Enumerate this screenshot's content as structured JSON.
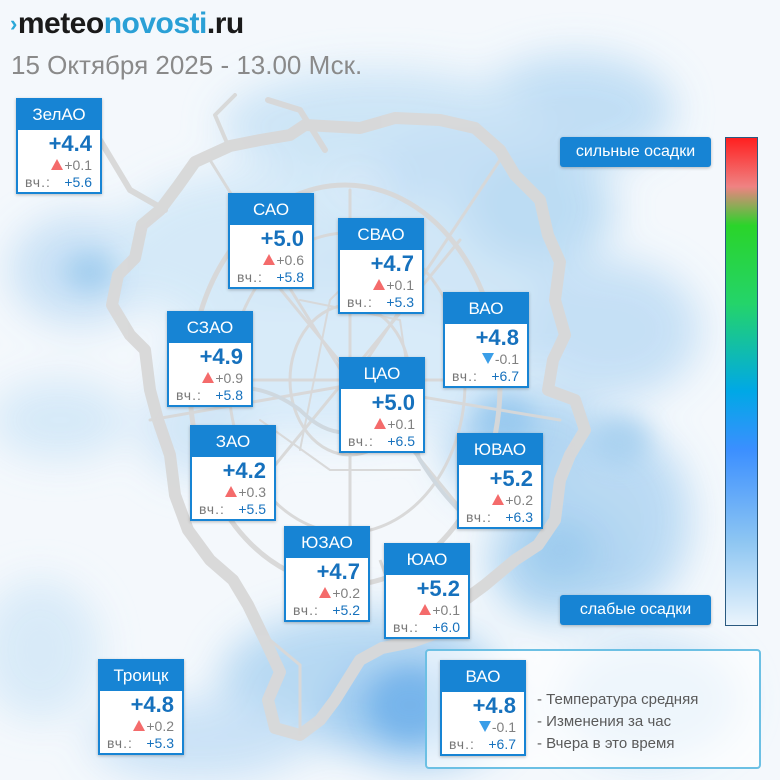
{
  "site": {
    "logo_mark": "›",
    "logo_a": "meteo",
    "logo_b": "novosti",
    "logo_c": ".ru"
  },
  "subtitle": "15 Октября 2025 - 13.00 Мск.",
  "yesterday_label": "вч.:",
  "colors": {
    "accent": "#1784d4",
    "increase_triangle": "#f46b6b",
    "decrease_triangle": "#3a9ee8",
    "temperature_text": "#1671bd"
  },
  "districts": [
    {
      "name": "ЗелАО",
      "temp": "+4.4",
      "trend": "up",
      "change": "+0.1",
      "yesterday": "+5.6"
    },
    {
      "name": "САО",
      "temp": "+5.0",
      "trend": "up",
      "change": "+0.6",
      "yesterday": "+5.8"
    },
    {
      "name": "СВАО",
      "temp": "+4.7",
      "trend": "up",
      "change": "+0.1",
      "yesterday": "+5.3"
    },
    {
      "name": "ВАО",
      "temp": "+4.8",
      "trend": "down",
      "change": "-0.1",
      "yesterday": "+6.7"
    },
    {
      "name": "СЗАО",
      "temp": "+4.9",
      "trend": "up",
      "change": "+0.9",
      "yesterday": "+5.8"
    },
    {
      "name": "ЦАО",
      "temp": "+5.0",
      "trend": "up",
      "change": "+0.1",
      "yesterday": "+6.5"
    },
    {
      "name": "ЗАО",
      "temp": "+4.2",
      "trend": "up",
      "change": "+0.3",
      "yesterday": "+5.5"
    },
    {
      "name": "ЮВАО",
      "temp": "+5.2",
      "trend": "up",
      "change": "+0.2",
      "yesterday": "+6.3"
    },
    {
      "name": "ЮЗАО",
      "temp": "+4.7",
      "trend": "up",
      "change": "+0.2",
      "yesterday": "+5.2"
    },
    {
      "name": "ЮАО",
      "temp": "+5.2",
      "trend": "up",
      "change": "+0.1",
      "yesterday": "+6.0"
    },
    {
      "name": "Троицк",
      "temp": "+4.8",
      "trend": "up",
      "change": "+0.2",
      "yesterday": "+5.3"
    }
  ],
  "precip_scale": {
    "top_label": "сильные осадки",
    "bottom_label": "слабые осадки"
  },
  "key": {
    "sample": {
      "name": "ВАО",
      "temp": "+4.8",
      "trend": "down",
      "change": "-0.1",
      "yesterday": "+6.7"
    },
    "lines": [
      "- Температура средняя",
      "- Изменения за час",
      "- Вчера в это время"
    ]
  }
}
